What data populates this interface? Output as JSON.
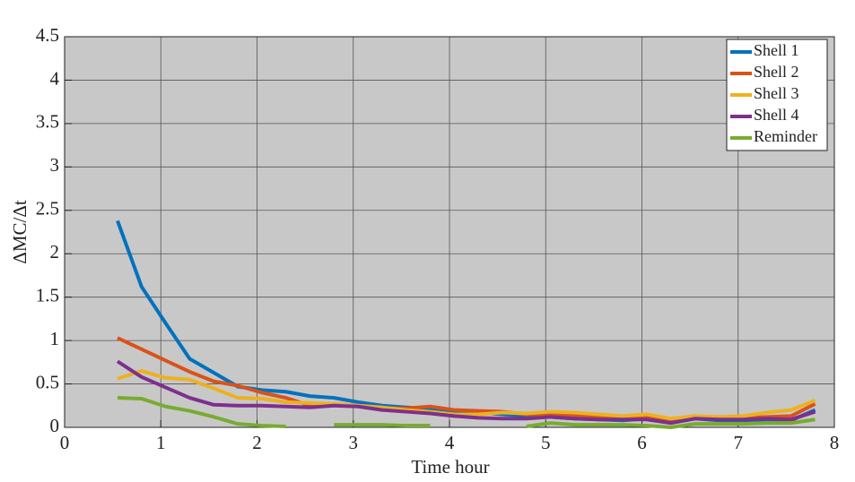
{
  "chart_data": {
    "type": "line",
    "x_label": "Time hour",
    "y_label": "ΔMC/Δt",
    "x": [
      0.55,
      0.8,
      1.05,
      1.3,
      1.55,
      1.8,
      2.05,
      2.3,
      2.55,
      2.8,
      3.05,
      3.3,
      3.55,
      3.8,
      4.05,
      4.3,
      4.55,
      4.8,
      5.05,
      5.3,
      5.55,
      5.8,
      6.05,
      6.3,
      6.55,
      6.8,
      7.05,
      7.3,
      7.55,
      7.8
    ],
    "series": [
      {
        "name": "Shell 1",
        "color": "#0072bd",
        "values": [
          2.38,
          1.62,
          1.2,
          0.79,
          0.63,
          0.47,
          0.43,
          0.41,
          0.36,
          0.34,
          0.29,
          0.25,
          0.23,
          0.21,
          0.19,
          0.17,
          0.15,
          0.13,
          0.12,
          0.1,
          0.09,
          0.08,
          0.1,
          0.05,
          0.1,
          0.08,
          0.08,
          0.09,
          0.08,
          0.2
        ]
      },
      {
        "name": "Shell 2",
        "color": "#d95319",
        "values": [
          1.03,
          0.9,
          0.77,
          0.64,
          0.53,
          0.48,
          0.4,
          0.34,
          0.25,
          0.27,
          0.25,
          0.22,
          0.22,
          0.24,
          0.2,
          0.19,
          0.18,
          0.15,
          0.15,
          0.13,
          0.12,
          0.11,
          0.13,
          0.08,
          0.12,
          0.11,
          0.11,
          0.12,
          0.13,
          0.27
        ]
      },
      {
        "name": "Shell 3",
        "color": "#edb120",
        "values": [
          0.56,
          0.65,
          0.57,
          0.55,
          0.45,
          0.34,
          0.33,
          0.29,
          0.28,
          0.27,
          0.25,
          0.23,
          0.2,
          0.18,
          0.15,
          0.15,
          0.17,
          0.16,
          0.18,
          0.17,
          0.15,
          0.13,
          0.15,
          0.1,
          0.13,
          0.12,
          0.13,
          0.17,
          0.2,
          0.31
        ]
      },
      {
        "name": "Shell 4",
        "color": "#7e2f8e",
        "values": [
          0.76,
          0.58,
          0.46,
          0.34,
          0.26,
          0.25,
          0.25,
          0.24,
          0.23,
          0.25,
          0.24,
          0.2,
          0.18,
          0.16,
          0.13,
          0.11,
          0.1,
          0.1,
          0.12,
          0.1,
          0.09,
          0.09,
          0.09,
          0.05,
          0.1,
          0.09,
          0.09,
          0.1,
          0.09,
          0.18
        ]
      },
      {
        "name": "Reminder",
        "color": "#77ac30",
        "values": [
          0.34,
          0.33,
          0.24,
          0.19,
          0.12,
          0.04,
          0.02,
          0.01,
          null,
          0.03,
          0.03,
          0.03,
          0.02,
          0.02,
          null,
          null,
          null,
          0.01,
          0.05,
          0.03,
          0.03,
          0.03,
          0.02,
          0,
          0.04,
          0.04,
          0.04,
          0.05,
          0.05,
          0.09
        ]
      }
    ],
    "xlim": [
      0,
      8
    ],
    "xticks": [
      0,
      1,
      2,
      3,
      4,
      5,
      6,
      7,
      8
    ],
    "ylim": [
      0,
      4.5
    ],
    "yticks": [
      0,
      0.5,
      1,
      1.5,
      2,
      2.5,
      3,
      3.5,
      4,
      4.5
    ],
    "grid": true,
    "legend": "top-right"
  }
}
